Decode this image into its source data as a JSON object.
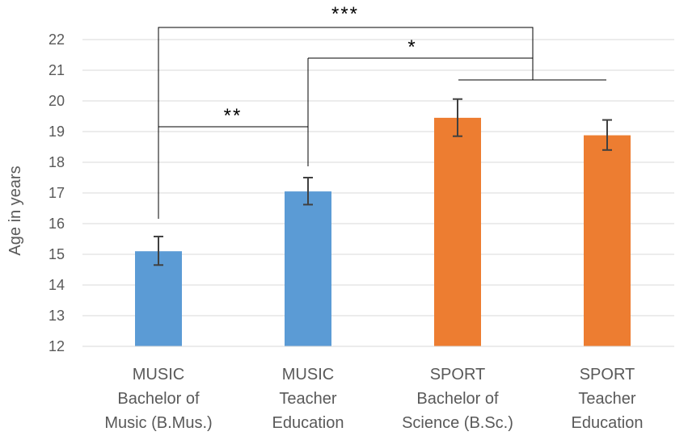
{
  "chart_data": {
    "type": "bar",
    "title": "",
    "ylabel": "Age in years",
    "ylim": [
      12,
      22
    ],
    "yticks": [
      "12",
      "13",
      "14",
      "15",
      "16",
      "17",
      "18",
      "19",
      "20",
      "21",
      "22"
    ],
    "grid": true,
    "categories": [
      [
        "MUSIC",
        "Bachelor of",
        "Music (B.Mus.)"
      ],
      [
        "MUSIC",
        "Teacher",
        "Education"
      ],
      [
        "SPORT",
        "Bachelor of",
        "Science (B.Sc.)"
      ],
      [
        "SPORT",
        "Teacher",
        "Education"
      ]
    ],
    "values": [
      15.1,
      17.05,
      19.45,
      18.88
    ],
    "error_low": [
      14.65,
      16.62,
      18.85,
      18.4
    ],
    "error_high": [
      15.58,
      17.5,
      20.06,
      19.38
    ],
    "colors": [
      "#5b9bd5",
      "#5b9bd5",
      "#ed7d31",
      "#ed7d31"
    ],
    "significance": [
      {
        "from": "MUSIC Bachelor of Music (B.Mus.)",
        "to": "SPORT (both)",
        "label": "***"
      },
      {
        "from": "MUSIC Teacher Education",
        "to": "SPORT (both)",
        "label": "*"
      },
      {
        "from": "MUSIC Bachelor of Music (B.Mus.)",
        "to": "MUSIC Teacher Education",
        "label": "**"
      }
    ]
  }
}
